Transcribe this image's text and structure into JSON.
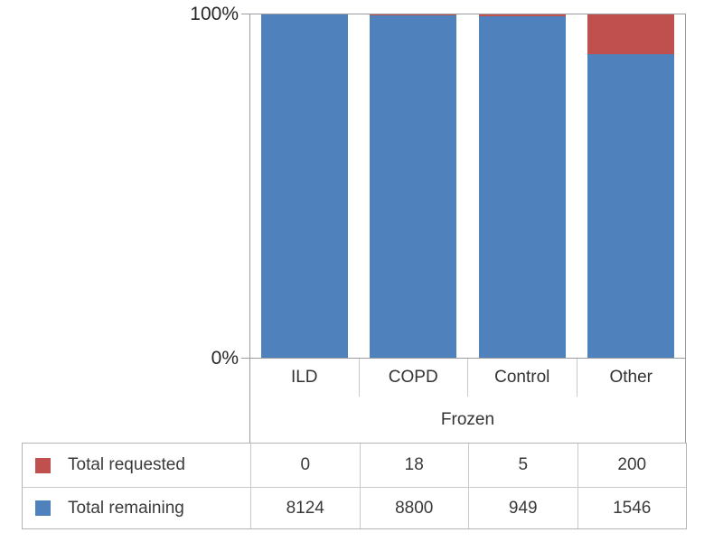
{
  "chart_data": {
    "type": "bar",
    "stacked": true,
    "percent": true,
    "title": "",
    "categories": [
      "ILD",
      "COPD",
      "Control",
      "Other"
    ],
    "group_label": "Frozen",
    "series": [
      {
        "name": "Total requested",
        "color": "#c0504d",
        "values": [
          0,
          18,
          5,
          200
        ]
      },
      {
        "name": "Total remaining",
        "color": "#4f81bd",
        "values": [
          8124,
          8800,
          949,
          1546
        ]
      }
    ],
    "yaxis": {
      "tick_top": "100%",
      "tick_bottom": "0%",
      "ylim": [
        0,
        100
      ]
    },
    "legend_position": "table-bottom",
    "grid": false
  },
  "table": {
    "rows": [
      {
        "label": "Total requested",
        "color": "#c0504d",
        "values": [
          "0",
          "18",
          "5",
          "200"
        ]
      },
      {
        "label": "Total remaining",
        "color": "#4f81bd",
        "values": [
          "8124",
          "8800",
          "949",
          "1546"
        ]
      }
    ]
  },
  "colors": {
    "bar_remaining": "#4f81bd",
    "bar_requested": "#c0504d",
    "axis_line": "#9b9ba2",
    "grid_line": "#c9c9c9",
    "text": "#333333"
  }
}
